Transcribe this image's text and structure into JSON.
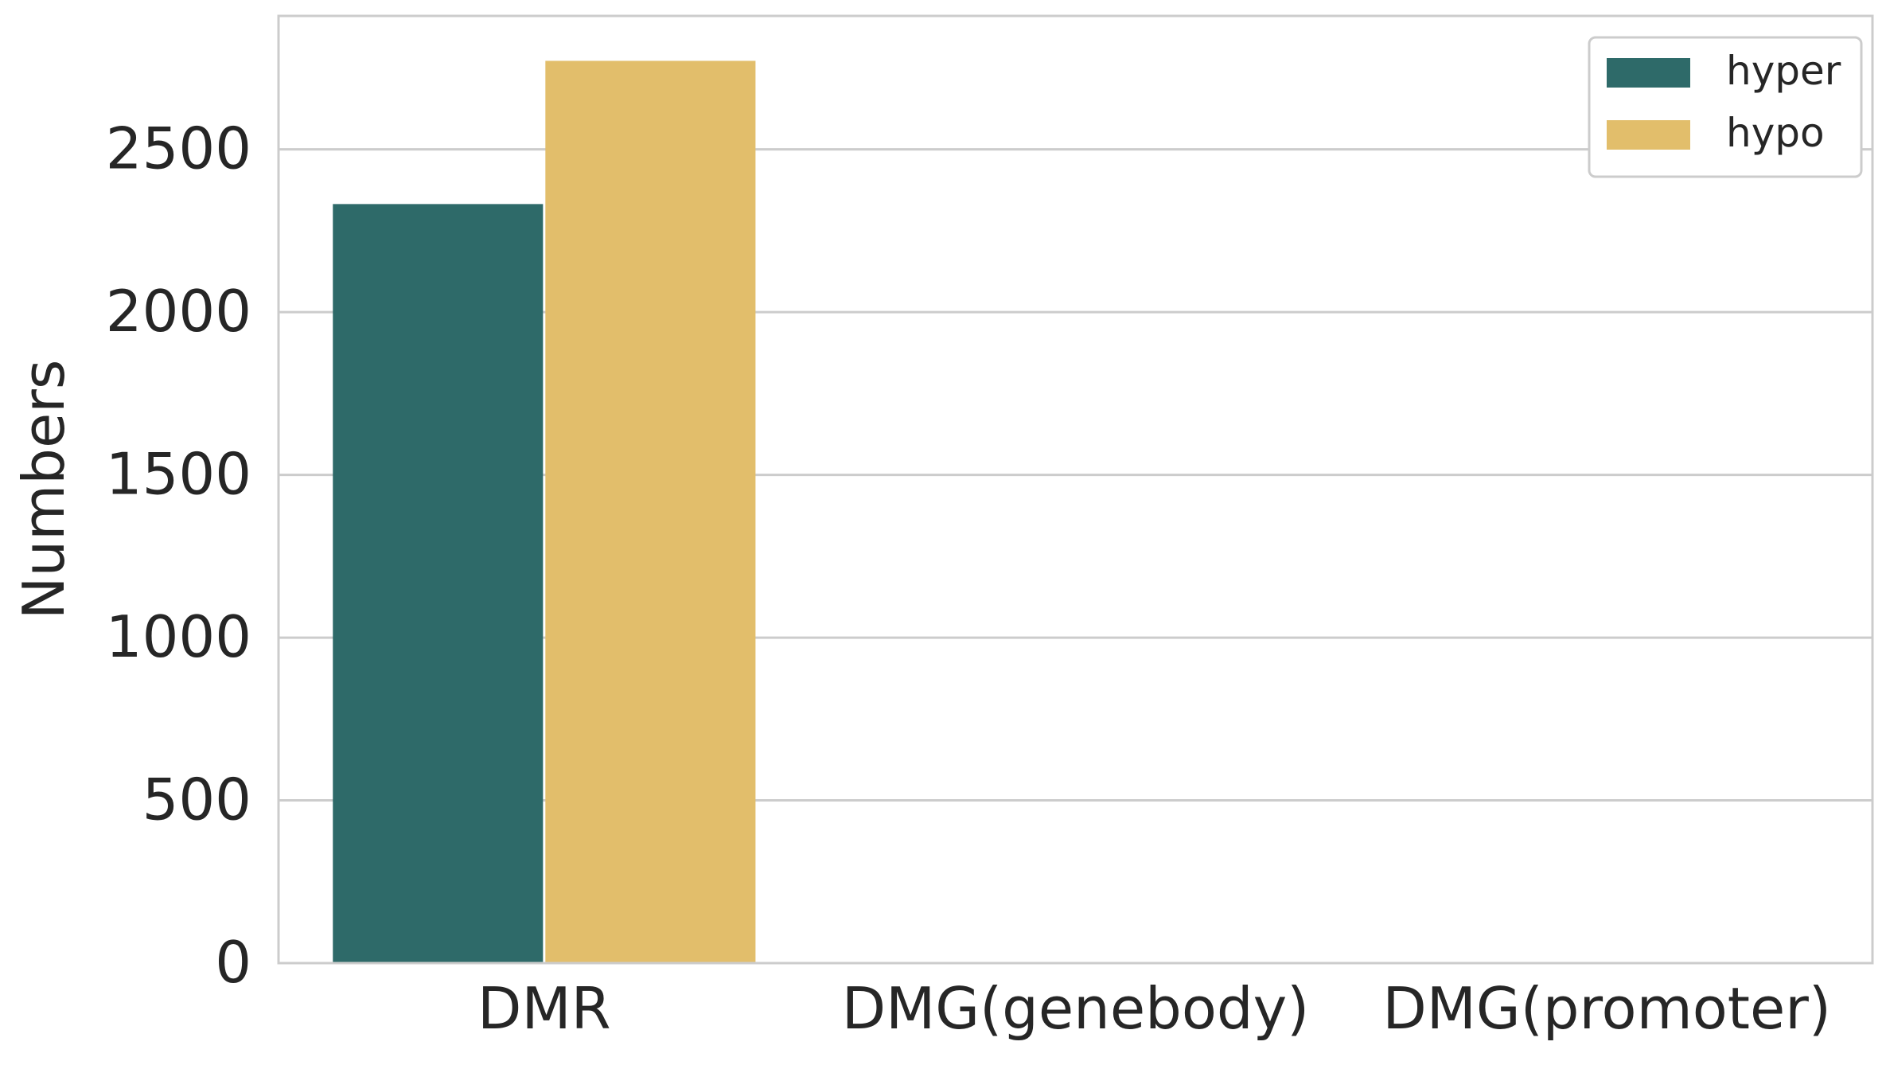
{
  "chart_data": {
    "type": "bar",
    "title": "",
    "xlabel": "",
    "ylabel": "Numbers",
    "categories": [
      "DMR",
      "DMG(genebody)",
      "DMG(promoter)"
    ],
    "series": [
      {
        "name": "hyper",
        "color": "#2e6a69",
        "values": [
          2332,
          0,
          0
        ]
      },
      {
        "name": "hypo",
        "color": "#e2be6b",
        "values": [
          2772,
          0,
          0
        ]
      }
    ],
    "yticks": [
      0,
      500,
      1000,
      1500,
      2000,
      2500
    ],
    "ylim": [
      0,
      2910
    ],
    "grid": "horizontal",
    "legend": "top-right"
  }
}
